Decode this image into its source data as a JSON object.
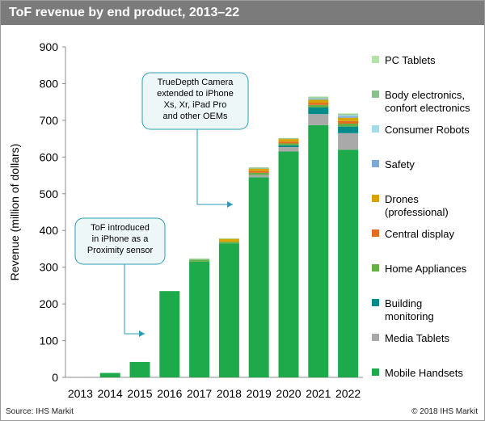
{
  "header": {
    "title": "ToF revenue by end product, 2013–22"
  },
  "footer": {
    "source": "Source: IHS Markit",
    "copyright": "© 2018 IHS Markit"
  },
  "callouts": [
    {
      "lines": [
        "TrueDepth Camera",
        "extended to iPhone",
        "Xs, Xr, iPad Pro",
        "and other OEMs"
      ]
    },
    {
      "lines": [
        "ToF introduced",
        "in iPhone as a",
        "Proximity sensor"
      ]
    }
  ],
  "chart_data": {
    "type": "bar",
    "stacked": true,
    "title": "ToF revenue by end product, 2013–22",
    "xlabel": "",
    "ylabel": "Revenue (million of dollars)",
    "ylim": [
      0,
      900
    ],
    "yticks": [
      0,
      100,
      200,
      300,
      400,
      500,
      600,
      700,
      800,
      900
    ],
    "grid": false,
    "legend_position": "right",
    "categories": [
      "2013",
      "2014",
      "2015",
      "2016",
      "2017",
      "2018",
      "2019",
      "2020",
      "2021",
      "2022"
    ],
    "series": [
      {
        "name": "Mobile Handsets",
        "color": "#1eaa4b",
        "values": [
          0,
          12,
          42,
          235,
          315,
          365,
          545,
          615,
          687,
          620
        ]
      },
      {
        "name": "Media Tablets",
        "color": "#a9a9a9",
        "values": [
          0,
          0,
          0,
          0,
          0,
          0,
          6,
          12,
          30,
          45
        ]
      },
      {
        "name": "Building monitoring",
        "color": "#008b8b",
        "values": [
          0,
          0,
          0,
          0,
          0,
          0,
          0,
          5,
          18,
          18
        ]
      },
      {
        "name": "Home Appliances",
        "color": "#62b045",
        "values": [
          0,
          0,
          0,
          0,
          5,
          4,
          6,
          5,
          7,
          8
        ]
      },
      {
        "name": "Central display",
        "color": "#e46c1e",
        "values": [
          0,
          0,
          0,
          0,
          0,
          0,
          5,
          5,
          6,
          7
        ]
      },
      {
        "name": "Drones (professional)",
        "color": "#d6a400",
        "values": [
          0,
          0,
          0,
          0,
          0,
          8,
          6,
          7,
          8,
          9
        ]
      },
      {
        "name": "Safety",
        "color": "#7da9d8",
        "values": [
          0,
          0,
          0,
          0,
          0,
          0,
          0,
          0,
          2,
          4
        ]
      },
      {
        "name": "Consumer Robots",
        "color": "#a3ddea",
        "values": [
          0,
          0,
          0,
          0,
          0,
          0,
          0,
          0,
          2,
          3
        ]
      },
      {
        "name": "Body electronics, confort electronics",
        "color": "#8ac28e",
        "values": [
          0,
          0,
          0,
          0,
          3,
          1,
          3,
          2,
          3,
          3
        ]
      },
      {
        "name": "PC Tablets",
        "color": "#b5e3a7",
        "values": [
          0,
          0,
          0,
          0,
          1,
          1,
          1,
          1,
          2,
          2
        ]
      }
    ]
  }
}
